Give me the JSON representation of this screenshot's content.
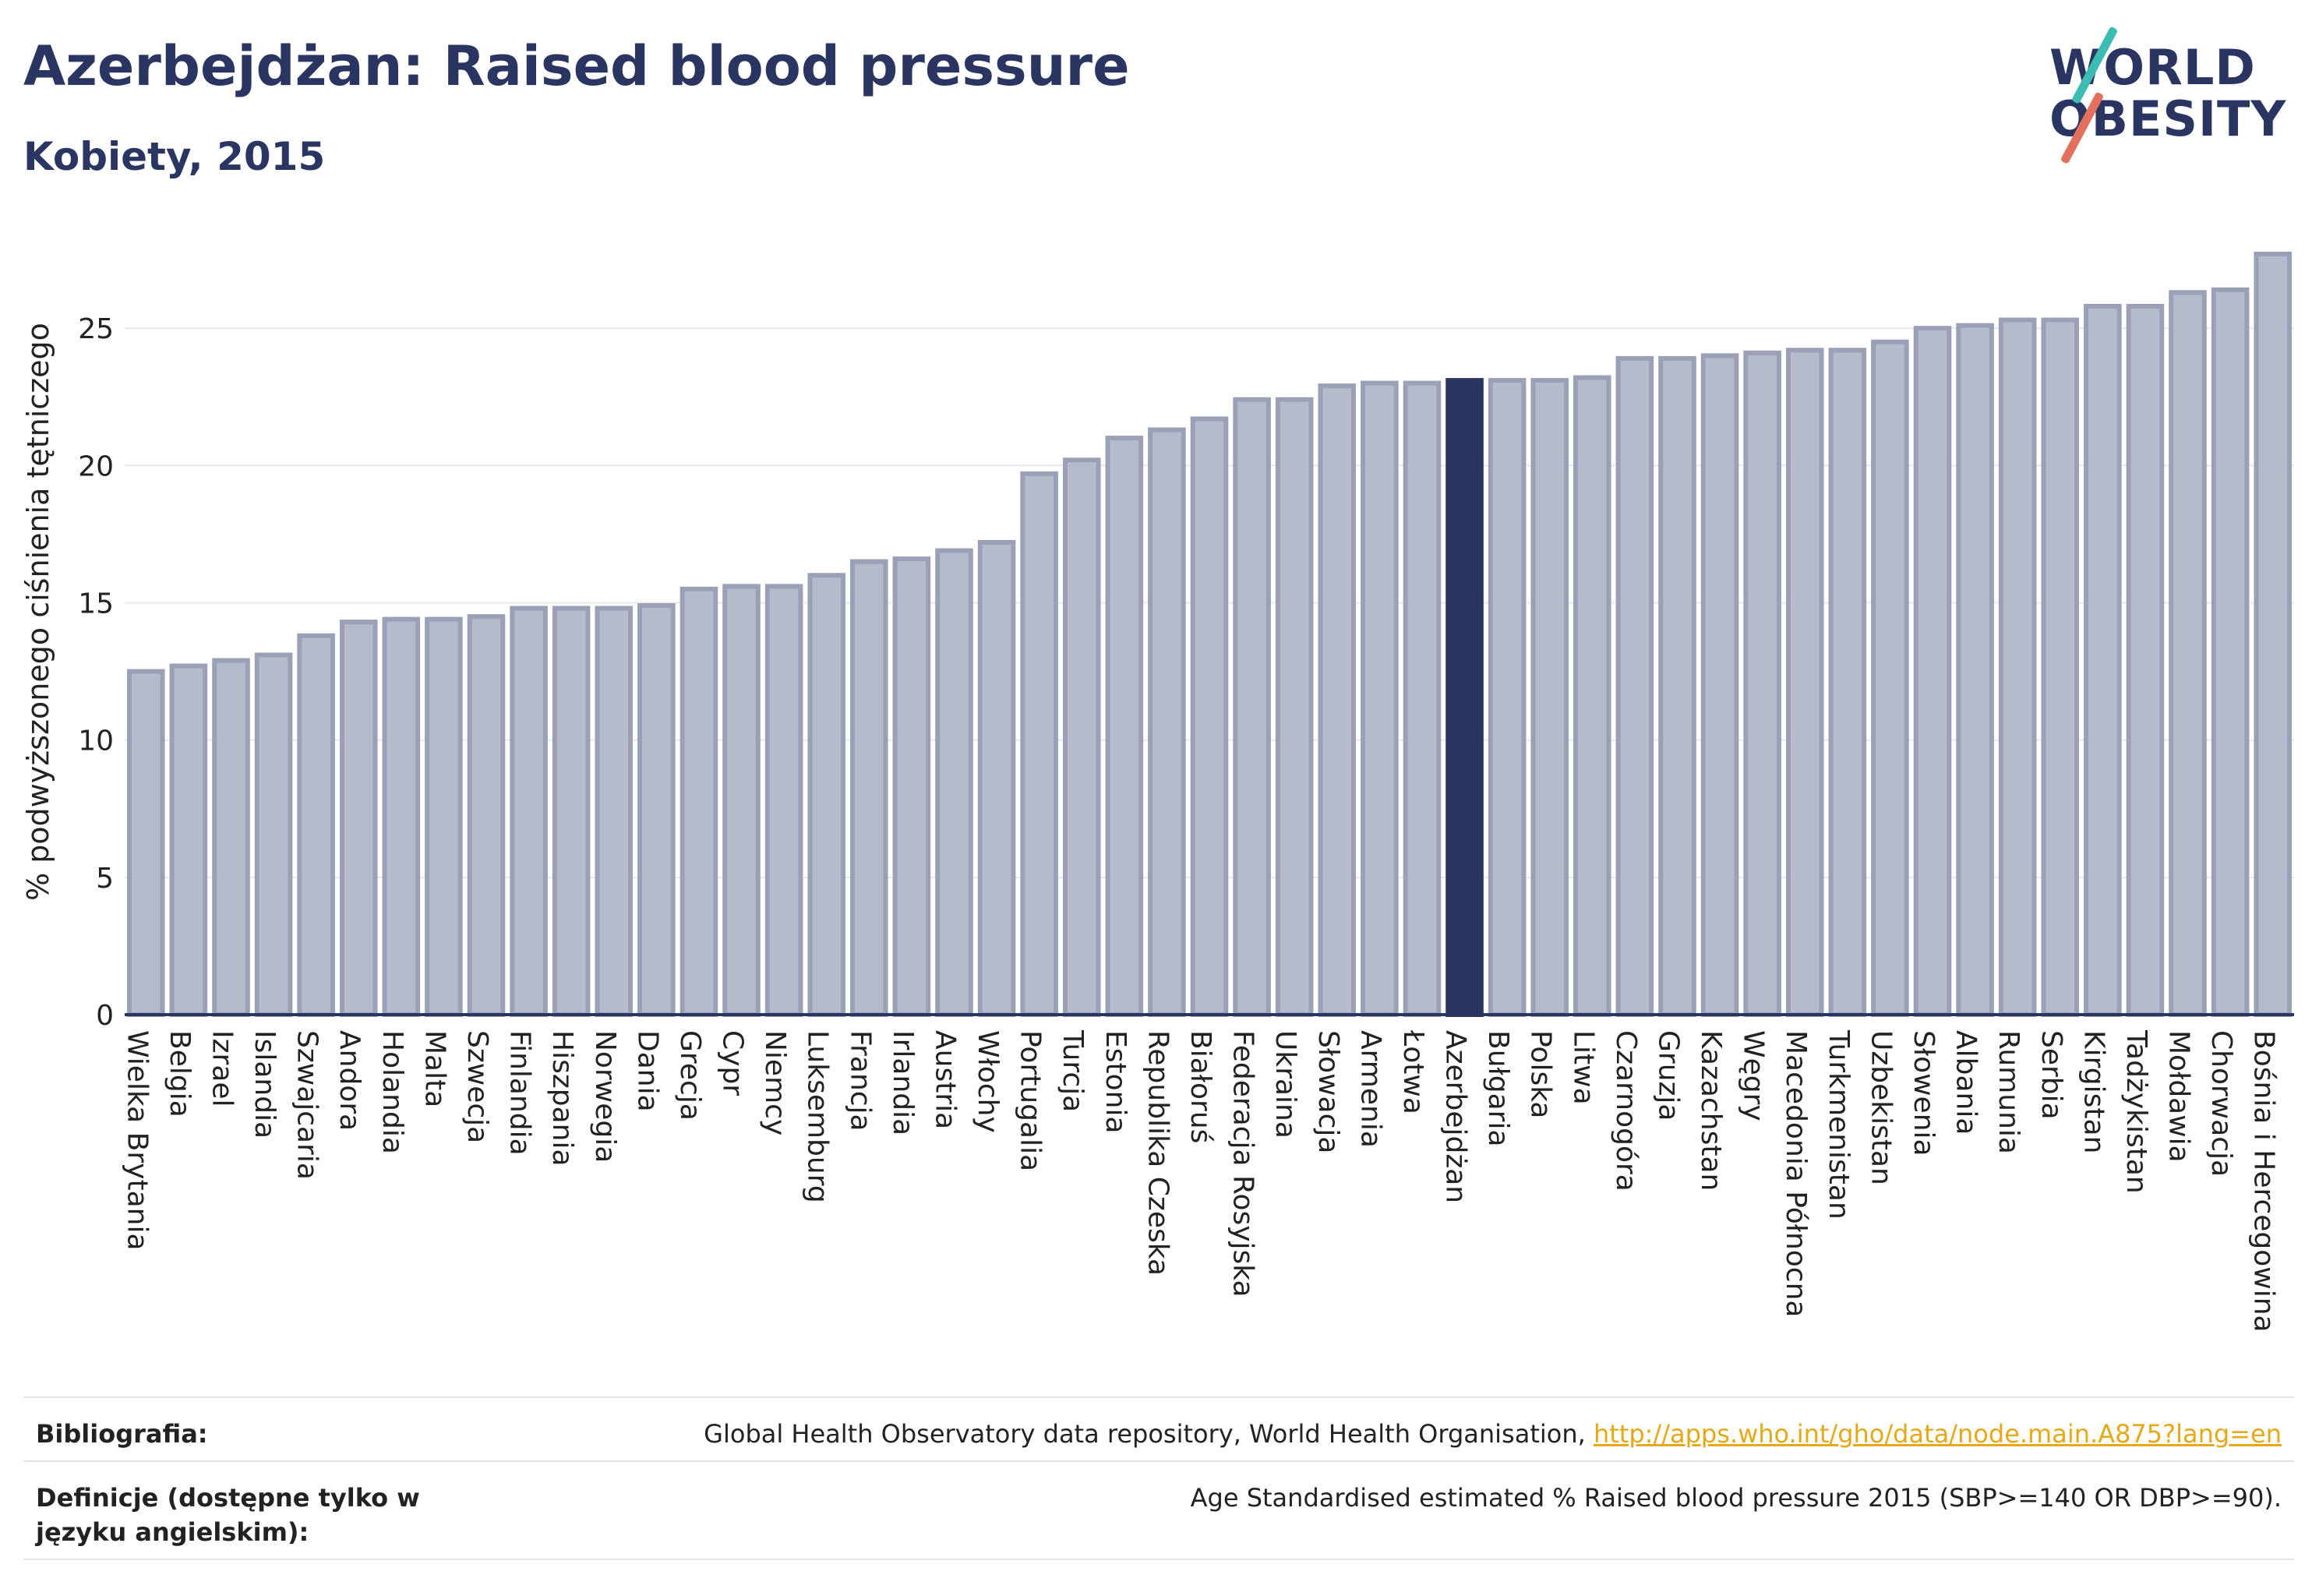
{
  "header": {
    "title": "Azerbejdżan: Raised blood pressure",
    "subtitle": "Kobiety, 2015"
  },
  "logo": {
    "line1": "WORLD",
    "line2": "OBESITY"
  },
  "chart_data": {
    "type": "bar",
    "ylabel": "% podwyższonego ciśnienia tętniczego",
    "ylim": [
      0,
      27.7
    ],
    "yticks": [
      0,
      5,
      10,
      15,
      20,
      25
    ],
    "grid": true,
    "highlight": "Azerbejdżan",
    "colors": {
      "bar": "#b6bbcc",
      "bar_edge": "#9aa0b6",
      "highlight": "#2a3561",
      "grid": "#e8e8ec",
      "axis": "#2a3561"
    },
    "categories": [
      "Wielka Brytania",
      "Belgia",
      "Izrael",
      "Islandia",
      "Szwajcaria",
      "Andora",
      "Holandia",
      "Malta",
      "Szwecja",
      "Finlandia",
      "Hiszpania",
      "Norwegia",
      "Dania",
      "Grecja",
      "Cypr",
      "Niemcy",
      "Luksemburg",
      "Francja",
      "Irlandia",
      "Austria",
      "Włochy",
      "Portugalia",
      "Turcja",
      "Estonia",
      "Republika Czeska",
      "Białoruś",
      "Federacja Rosyjska",
      "Ukraina",
      "Słowacja",
      "Armenia",
      "Łotwa",
      "Azerbejdżan",
      "Bułgaria",
      "Polska",
      "Litwa",
      "Czarnogóra",
      "Gruzja",
      "Kazachstan",
      "Węgry",
      "Macedonia Północna",
      "Turkmenistan",
      "Uzbekistan",
      "Słowenia",
      "Albania",
      "Rumunia",
      "Serbia",
      "Kirgistan",
      "Tadżykistan",
      "Mołdawia",
      "Chorwacja",
      "Bośnia i Hercegowina"
    ],
    "values": [
      12.5,
      12.7,
      12.9,
      13.1,
      13.8,
      14.3,
      14.4,
      14.4,
      14.5,
      14.8,
      14.8,
      14.8,
      14.9,
      15.5,
      15.6,
      15.6,
      16.0,
      16.5,
      16.6,
      16.9,
      17.2,
      19.7,
      20.2,
      21.0,
      21.3,
      21.7,
      22.4,
      22.4,
      22.9,
      23.0,
      23.0,
      23.1,
      23.1,
      23.1,
      23.2,
      23.9,
      23.9,
      24.0,
      24.1,
      24.2,
      24.2,
      24.5,
      25.0,
      25.1,
      25.3,
      25.3,
      25.8,
      25.8,
      26.3,
      26.4,
      27.7
    ]
  },
  "footer": {
    "bibliography_label": "Bibliografia:",
    "bibliography_text": "Global Health Observatory data repository, World Health Organisation, ",
    "bibliography_link": "http://apps.who.int/gho/data/node.main.A875?lang=en",
    "definition_label": "Definicje (dostępne tylko w języku angielskim):",
    "definition_text": "Age Standardised estimated % Raised blood pressure 2015 (SBP>=140 OR DBP>=90)."
  }
}
